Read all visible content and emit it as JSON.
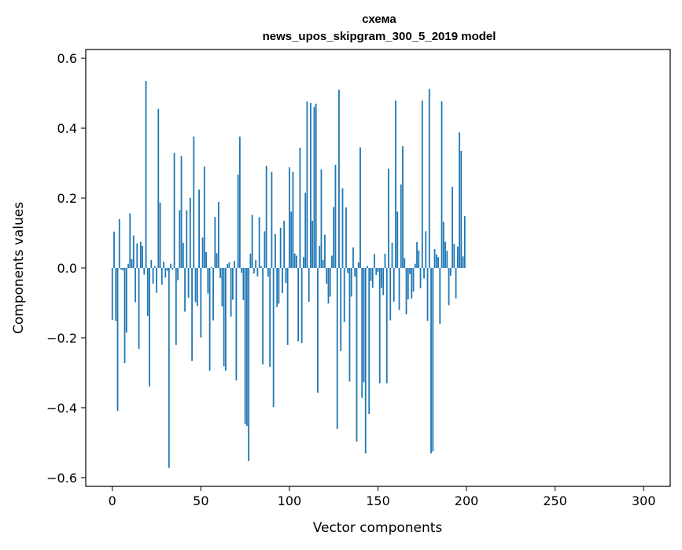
{
  "chart_data": {
    "type": "bar",
    "title": "схема",
    "subtitle": "news_upos_skipgram_300_5_2019 model",
    "xlabel": "Vector components",
    "ylabel": "Components values",
    "xlim": [
      -15,
      315
    ],
    "ylim": [
      -0.625,
      0.625
    ],
    "x_ticks": [
      0,
      50,
      100,
      150,
      200,
      250,
      300
    ],
    "x_tick_labels": [
      "0",
      "50",
      "100",
      "150",
      "200",
      "250",
      "300"
    ],
    "y_ticks": [
      -0.6,
      -0.4,
      -0.2,
      0.0,
      0.2,
      0.4,
      0.6
    ],
    "y_tick_labels": [
      "−0.6",
      "−0.4",
      "−0.2",
      "0.0",
      "0.2",
      "0.4",
      "0.6"
    ],
    "bar_color": "#1f77b4",
    "grid": false,
    "values": [
      -0.149,
      0.104,
      -0.152,
      -0.409,
      0.14,
      -0.005,
      -0.007,
      -0.272,
      -0.185,
      0.012,
      0.156,
      0.025,
      0.093,
      -0.098,
      0.07,
      -0.232,
      0.075,
      0.063,
      -0.019,
      0.535,
      -0.137,
      -0.339,
      0.023,
      -0.045,
      0.005,
      -0.071,
      0.455,
      0.187,
      -0.048,
      0.018,
      -0.028,
      -0.008,
      -0.572,
      0.012,
      -0.005,
      0.329,
      -0.22,
      -0.035,
      0.165,
      0.32,
      0.072,
      -0.125,
      0.165,
      -0.085,
      0.201,
      -0.266,
      0.376,
      -0.098,
      -0.109,
      0.224,
      -0.199,
      0.087,
      0.29,
      0.045,
      -0.073,
      -0.294,
      0.002,
      -0.15,
      0.146,
      0.042,
      0.189,
      -0.029,
      -0.11,
      -0.282,
      -0.294,
      0.011,
      0.016,
      -0.139,
      -0.091,
      0.02,
      -0.322,
      0.267,
      0.376,
      -0.014,
      -0.092,
      -0.447,
      -0.452,
      -0.553,
      0.041,
      0.152,
      -0.016,
      0.022,
      -0.024,
      0.145,
      0.005,
      -0.276,
      0.105,
      0.292,
      -0.025,
      -0.283,
      0.275,
      -0.398,
      0.097,
      -0.112,
      -0.102,
      0.115,
      -0.072,
      0.135,
      -0.043,
      -0.22,
      0.288,
      0.161,
      0.275,
      0.041,
      0.035,
      -0.21,
      0.344,
      -0.215,
      0.031,
      0.215,
      0.476,
      -0.097,
      0.472,
      0.135,
      0.461,
      0.47,
      -0.357,
      0.063,
      0.282,
      0.023,
      0.095,
      -0.045,
      -0.102,
      -0.082,
      0.035,
      0.174,
      0.295,
      -0.461,
      0.51,
      -0.238,
      0.228,
      -0.155,
      0.173,
      -0.015,
      -0.325,
      -0.082,
      0.059,
      -0.025,
      -0.497,
      0.016,
      0.345,
      -0.372,
      -0.327,
      -0.531,
      0.006,
      -0.418,
      -0.037,
      -0.057,
      0.04,
      -0.02,
      -0.011,
      -0.33,
      -0.057,
      -0.078,
      0.041,
      -0.33,
      0.284,
      -0.15,
      0.072,
      -0.097,
      0.479,
      0.161,
      -0.12,
      0.239,
      0.348,
      0.028,
      -0.133,
      -0.09,
      -0.018,
      -0.088,
      -0.068,
      0.012,
      0.074,
      0.05,
      -0.058,
      0.479,
      -0.03,
      0.105,
      -0.152,
      0.512,
      -0.531,
      -0.525,
      0.054,
      0.039,
      0.031,
      -0.16,
      0.477,
      0.132,
      0.075,
      0.049,
      -0.107,
      -0.022,
      0.232,
      0.069,
      -0.087,
      0.061,
      0.388,
      0.335,
      0.033,
      0.148
    ]
  }
}
